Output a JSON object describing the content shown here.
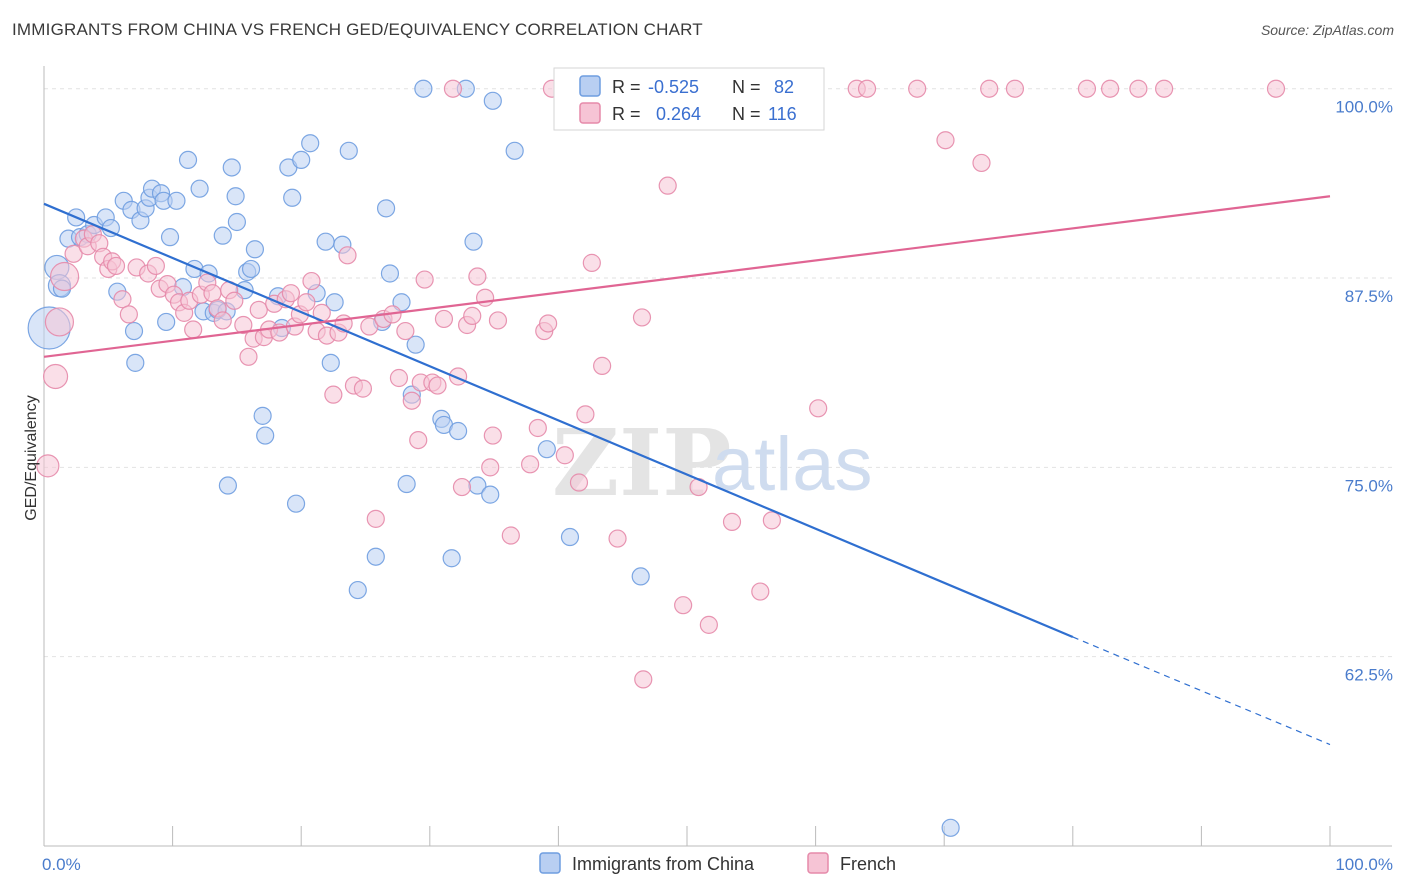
{
  "title": "IMMIGRANTS FROM CHINA VS FRENCH GED/EQUIVALENCY CORRELATION CHART",
  "source": "Source: ZipAtlas.com",
  "watermark": {
    "zip": "ZIP",
    "atlas": "atlas"
  },
  "colors": {
    "china": "#6f9de0",
    "china_fill": "#b9cff2",
    "french": "#e58aaa",
    "french_fill": "#f6c4d5",
    "china_line": "#2f6fd0",
    "french_line": "#e06593",
    "grid": "#e2e2e2",
    "tick_label": "#4a7ccc"
  },
  "stats": {
    "r_label": "R =",
    "n_label": "N =",
    "china": {
      "r": "-0.525",
      "n": "82"
    },
    "french": {
      "r": "0.264",
      "n": "116"
    }
  },
  "chart_data": {
    "type": "scatter",
    "title": "IMMIGRANTS FROM CHINA VS FRENCH GED/EQUIVALENCY CORRELATION CHART",
    "xlabel": "",
    "ylabel": "GED/Equivalency",
    "xlim": [
      0,
      100
    ],
    "ylim": [
      50,
      101.5
    ],
    "x_tick_labels": [
      "0.0%",
      "100.0%"
    ],
    "y_ticks": [
      62.5,
      75.0,
      87.5,
      100.0
    ],
    "y_tick_labels": [
      "62.5%",
      "75.0%",
      "87.5%",
      "100.0%"
    ],
    "grid": true,
    "legend_position": "bottom-center",
    "series": [
      {
        "name": "Immigrants from China",
        "points": [
          [
            0.4,
            84.2
          ],
          [
            1.0,
            88.2
          ],
          [
            1.2,
            87.0
          ],
          [
            1.4,
            86.8
          ],
          [
            1.9,
            90.1
          ],
          [
            2.5,
            91.5
          ],
          [
            2.8,
            90.2
          ],
          [
            3.4,
            90.4
          ],
          [
            3.9,
            91.0
          ],
          [
            4.8,
            91.5
          ],
          [
            5.2,
            90.8
          ],
          [
            5.7,
            86.6
          ],
          [
            6.2,
            92.6
          ],
          [
            6.8,
            92.0
          ],
          [
            7.0,
            84.0
          ],
          [
            7.1,
            81.9
          ],
          [
            7.5,
            91.3
          ],
          [
            7.9,
            92.1
          ],
          [
            8.2,
            92.8
          ],
          [
            8.4,
            93.4
          ],
          [
            9.1,
            93.1
          ],
          [
            9.3,
            92.6
          ],
          [
            9.8,
            90.2
          ],
          [
            9.5,
            84.6
          ],
          [
            10.3,
            92.6
          ],
          [
            10.8,
            86.9
          ],
          [
            11.2,
            95.3
          ],
          [
            11.7,
            88.1
          ],
          [
            12.1,
            93.4
          ],
          [
            12.4,
            85.3
          ],
          [
            12.8,
            87.8
          ],
          [
            13.2,
            85.2
          ],
          [
            13.5,
            85.4
          ],
          [
            13.9,
            90.3
          ],
          [
            14.2,
            85.3
          ],
          [
            14.3,
            73.8
          ],
          [
            14.6,
            94.8
          ],
          [
            14.9,
            92.9
          ],
          [
            15.0,
            91.2
          ],
          [
            15.6,
            86.7
          ],
          [
            15.8,
            87.9
          ],
          [
            16.1,
            88.1
          ],
          [
            16.4,
            89.4
          ],
          [
            17.2,
            77.1
          ],
          [
            17.0,
            78.4
          ],
          [
            18.2,
            86.3
          ],
          [
            18.5,
            84.2
          ],
          [
            19.0,
            94.8
          ],
          [
            19.3,
            92.8
          ],
          [
            19.6,
            72.6
          ],
          [
            20.0,
            95.3
          ],
          [
            20.7,
            96.4
          ],
          [
            21.2,
            86.5
          ],
          [
            21.9,
            89.9
          ],
          [
            22.3,
            81.9
          ],
          [
            22.6,
            85.9
          ],
          [
            23.2,
            89.7
          ],
          [
            23.7,
            95.9
          ],
          [
            24.4,
            66.9
          ],
          [
            25.8,
            69.1
          ],
          [
            26.3,
            84.6
          ],
          [
            26.6,
            92.1
          ],
          [
            26.9,
            87.8
          ],
          [
            27.8,
            85.9
          ],
          [
            28.2,
            73.9
          ],
          [
            28.6,
            79.8
          ],
          [
            28.9,
            83.1
          ],
          [
            29.5,
            100.0
          ],
          [
            30.9,
            78.2
          ],
          [
            31.1,
            77.8
          ],
          [
            31.7,
            69.0
          ],
          [
            32.2,
            77.4
          ],
          [
            32.8,
            100.0
          ],
          [
            33.4,
            89.9
          ],
          [
            33.7,
            73.8
          ],
          [
            34.7,
            73.2
          ],
          [
            34.9,
            99.2
          ],
          [
            36.6,
            95.9
          ],
          [
            39.1,
            76.2
          ],
          [
            40.9,
            70.4
          ],
          [
            46.4,
            67.8
          ],
          [
            70.5,
            51.2
          ]
        ]
      },
      {
        "name": "French",
        "points": [
          [
            0.3,
            75.1
          ],
          [
            0.9,
            81.0
          ],
          [
            1.2,
            84.6
          ],
          [
            1.6,
            87.6
          ],
          [
            2.3,
            89.1
          ],
          [
            3.1,
            90.1
          ],
          [
            3.4,
            89.6
          ],
          [
            3.8,
            90.4
          ],
          [
            4.3,
            89.8
          ],
          [
            4.6,
            88.9
          ],
          [
            5.0,
            88.1
          ],
          [
            5.3,
            88.6
          ],
          [
            5.6,
            88.3
          ],
          [
            6.1,
            86.1
          ],
          [
            6.6,
            85.1
          ],
          [
            7.2,
            88.2
          ],
          [
            8.1,
            87.8
          ],
          [
            8.7,
            88.3
          ],
          [
            9.0,
            86.8
          ],
          [
            9.6,
            87.1
          ],
          [
            10.1,
            86.4
          ],
          [
            10.5,
            85.9
          ],
          [
            10.9,
            85.2
          ],
          [
            11.3,
            86.0
          ],
          [
            11.6,
            84.1
          ],
          [
            12.2,
            86.4
          ],
          [
            12.7,
            87.2
          ],
          [
            13.1,
            86.5
          ],
          [
            13.5,
            85.5
          ],
          [
            13.9,
            84.7
          ],
          [
            14.4,
            86.7
          ],
          [
            14.8,
            86.0
          ],
          [
            15.5,
            84.4
          ],
          [
            15.9,
            82.3
          ],
          [
            16.3,
            83.5
          ],
          [
            16.7,
            85.4
          ],
          [
            17.1,
            83.6
          ],
          [
            17.5,
            84.1
          ],
          [
            17.9,
            85.8
          ],
          [
            18.3,
            83.9
          ],
          [
            18.8,
            86.1
          ],
          [
            19.2,
            86.5
          ],
          [
            19.5,
            84.3
          ],
          [
            19.9,
            85.1
          ],
          [
            20.4,
            85.9
          ],
          [
            20.8,
            87.3
          ],
          [
            21.2,
            84.0
          ],
          [
            21.6,
            85.2
          ],
          [
            22.0,
            83.7
          ],
          [
            22.5,
            79.8
          ],
          [
            22.9,
            83.9
          ],
          [
            23.3,
            84.5
          ],
          [
            23.6,
            89.0
          ],
          [
            24.1,
            80.4
          ],
          [
            24.8,
            80.2
          ],
          [
            25.3,
            84.3
          ],
          [
            25.8,
            71.6
          ],
          [
            26.4,
            84.8
          ],
          [
            27.1,
            85.1
          ],
          [
            27.6,
            80.9
          ],
          [
            28.1,
            84.0
          ],
          [
            28.6,
            79.4
          ],
          [
            29.1,
            76.8
          ],
          [
            29.3,
            80.6
          ],
          [
            29.6,
            87.4
          ],
          [
            30.2,
            80.6
          ],
          [
            30.6,
            80.4
          ],
          [
            31.1,
            84.8
          ],
          [
            32.2,
            81.0
          ],
          [
            32.5,
            73.7
          ],
          [
            32.9,
            84.4
          ],
          [
            33.3,
            85.0
          ],
          [
            33.7,
            87.6
          ],
          [
            34.3,
            86.2
          ],
          [
            34.7,
            75.0
          ],
          [
            34.9,
            77.1
          ],
          [
            35.3,
            84.7
          ],
          [
            36.3,
            70.5
          ],
          [
            37.8,
            75.2
          ],
          [
            38.4,
            77.6
          ],
          [
            38.9,
            84.0
          ],
          [
            39.2,
            84.5
          ],
          [
            40.5,
            75.8
          ],
          [
            41.6,
            74.0
          ],
          [
            42.1,
            78.5
          ],
          [
            42.6,
            88.5
          ],
          [
            43.4,
            81.7
          ],
          [
            44.6,
            70.3
          ],
          [
            46.6,
            61.0
          ],
          [
            46.5,
            84.9
          ],
          [
            48.5,
            93.6
          ],
          [
            49.7,
            65.9
          ],
          [
            50.9,
            73.7
          ],
          [
            51.7,
            64.6
          ],
          [
            53.5,
            71.4
          ],
          [
            55.7,
            66.8
          ],
          [
            56.6,
            71.5
          ],
          [
            57.0,
            98.3
          ],
          [
            58.7,
            100.0
          ],
          [
            60.2,
            78.9
          ],
          [
            63.2,
            100.0
          ],
          [
            64.0,
            100.0
          ],
          [
            67.9,
            100.0
          ],
          [
            70.1,
            96.6
          ],
          [
            72.9,
            95.1
          ],
          [
            73.5,
            100.0
          ],
          [
            75.5,
            100.0
          ],
          [
            81.1,
            100.0
          ],
          [
            82.9,
            100.0
          ],
          [
            85.1,
            100.0
          ],
          [
            87.1,
            100.0
          ],
          [
            95.8,
            100.0
          ],
          [
            39.5,
            100.0
          ],
          [
            46.0,
            100.0
          ],
          [
            48.0,
            100.0
          ],
          [
            31.8,
            100.0
          ]
        ]
      }
    ],
    "trend_lines": [
      {
        "series": "Immigrants from China",
        "x0": 0,
        "y0": 92.4,
        "x1": 80,
        "y1": 63.8,
        "dashed_to_x": 100,
        "dashed_to_y": 56.7
      },
      {
        "series": "French",
        "x0": 0,
        "y0": 82.3,
        "x1": 100,
        "y1": 92.9
      }
    ]
  },
  "legend": {
    "china": "Immigrants from China",
    "french": "French"
  }
}
